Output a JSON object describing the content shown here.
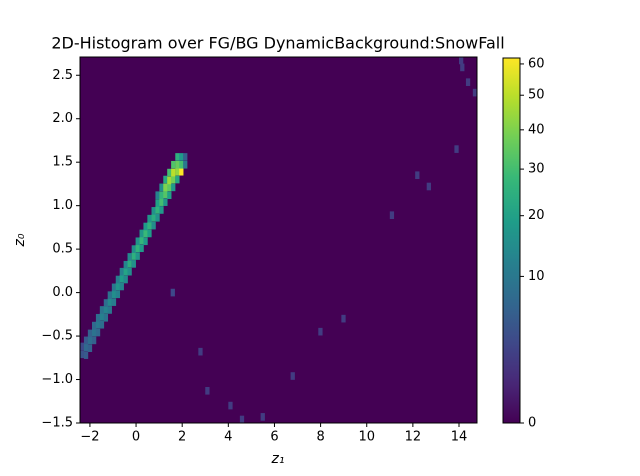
{
  "chart_data": {
    "type": "hist2d",
    "title": "2D-Histogram over FG/BG DynamicBackground:SnowFall",
    "xlabel": "z₁",
    "ylabel": "z₀",
    "cmap": "viridis",
    "color_scale": "sqrt",
    "clim": [
      0,
      62
    ],
    "bins": [
      100,
      50
    ],
    "xlim": [
      -2.43,
      14.78
    ],
    "ylim": [
      -1.5,
      2.71
    ],
    "xticks": [
      {
        "value": -2,
        "label": "−2"
      },
      0,
      2,
      4,
      6,
      8,
      10,
      12,
      14
    ],
    "yticks": [
      {
        "value": -1.5,
        "label": "−1.5"
      },
      {
        "value": -1.0,
        "label": "−1.0"
      },
      {
        "value": -0.5,
        "label": "−0.5"
      },
      {
        "value": 0.0,
        "label": "0.0"
      },
      0.5,
      {
        "value": 1.0,
        "label": "1.0"
      },
      1.5,
      {
        "value": 2.0,
        "label": "2.0"
      },
      2.5
    ],
    "cticks": [
      0,
      10,
      20,
      30,
      40,
      50,
      60
    ],
    "cells": [
      [
        -2.43,
        -0.75,
        4
      ],
      [
        -2.43,
        -0.66,
        3
      ],
      [
        -2.26,
        -0.76,
        5
      ],
      [
        -2.26,
        -0.67,
        7
      ],
      [
        -2.26,
        -0.59,
        5
      ],
      [
        -2.09,
        -0.68,
        6
      ],
      [
        -2.09,
        -0.59,
        8
      ],
      [
        -2.09,
        -0.51,
        6
      ],
      [
        -1.91,
        -0.59,
        6
      ],
      [
        -1.91,
        -0.5,
        9
      ],
      [
        -1.91,
        -0.42,
        7
      ],
      [
        -1.74,
        -0.5,
        7
      ],
      [
        -1.74,
        -0.41,
        10
      ],
      [
        -1.74,
        -0.33,
        8
      ],
      [
        -1.57,
        -0.41,
        8
      ],
      [
        -1.57,
        -0.32,
        12
      ],
      [
        -1.57,
        -0.24,
        9
      ],
      [
        -1.4,
        -0.33,
        9
      ],
      [
        -1.4,
        -0.24,
        13
      ],
      [
        -1.4,
        -0.16,
        8
      ],
      [
        -1.23,
        -0.24,
        10
      ],
      [
        -1.23,
        -0.15,
        14
      ],
      [
        -1.23,
        -0.07,
        9
      ],
      [
        -1.05,
        -0.15,
        11
      ],
      [
        -1.05,
        -0.06,
        15
      ],
      [
        -1.05,
        0.02,
        10
      ],
      [
        -0.88,
        -0.06,
        12
      ],
      [
        -0.88,
        0.03,
        17
      ],
      [
        -0.88,
        0.11,
        11
      ],
      [
        -0.71,
        0.03,
        13
      ],
      [
        -0.71,
        0.12,
        19
      ],
      [
        -0.71,
        0.2,
        12
      ],
      [
        -0.54,
        0.11,
        14
      ],
      [
        -0.54,
        0.2,
        21
      ],
      [
        -0.54,
        0.28,
        13
      ],
      [
        -0.37,
        0.2,
        15
      ],
      [
        -0.37,
        0.29,
        24
      ],
      [
        -0.37,
        0.37,
        14
      ],
      [
        -0.19,
        0.29,
        16
      ],
      [
        -0.19,
        0.38,
        25
      ],
      [
        -0.19,
        0.46,
        15
      ],
      [
        -0.02,
        0.38,
        17
      ],
      [
        -0.02,
        0.47,
        26
      ],
      [
        -0.02,
        0.55,
        16
      ],
      [
        0.15,
        0.47,
        18
      ],
      [
        0.15,
        0.56,
        27
      ],
      [
        0.15,
        0.64,
        17
      ],
      [
        0.32,
        0.55,
        18
      ],
      [
        0.32,
        0.64,
        28
      ],
      [
        0.32,
        0.72,
        18
      ],
      [
        0.49,
        0.64,
        19
      ],
      [
        0.49,
        0.73,
        26
      ],
      [
        0.49,
        0.81,
        17
      ],
      [
        0.67,
        0.73,
        15
      ],
      [
        0.67,
        0.82,
        24
      ],
      [
        0.67,
        0.9,
        16
      ],
      [
        0.84,
        0.82,
        16
      ],
      [
        0.84,
        0.91,
        26
      ],
      [
        0.84,
        0.99,
        20
      ],
      [
        0.84,
        1.08,
        12
      ],
      [
        1.01,
        0.91,
        18
      ],
      [
        1.01,
        1.0,
        30
      ],
      [
        1.01,
        1.08,
        27
      ],
      [
        1.01,
        1.17,
        15
      ],
      [
        1.18,
        1.0,
        17
      ],
      [
        1.18,
        1.09,
        33
      ],
      [
        1.18,
        1.17,
        40
      ],
      [
        1.18,
        1.26,
        22
      ],
      [
        1.35,
        1.08,
        20
      ],
      [
        1.35,
        1.17,
        35
      ],
      [
        1.35,
        1.25,
        45
      ],
      [
        1.35,
        1.34,
        30
      ],
      [
        1.52,
        1.17,
        18
      ],
      [
        1.52,
        1.26,
        38
      ],
      [
        1.52,
        1.34,
        50
      ],
      [
        1.52,
        1.43,
        32
      ],
      [
        1.7,
        1.26,
        22
      ],
      [
        1.7,
        1.35,
        44
      ],
      [
        1.7,
        1.43,
        36
      ],
      [
        1.7,
        1.52,
        25
      ],
      [
        1.87,
        1.35,
        62
      ],
      [
        1.87,
        1.43,
        30
      ],
      [
        1.87,
        1.52,
        18
      ],
      [
        2.04,
        1.43,
        10
      ],
      [
        2.04,
        1.52,
        6
      ],
      [
        1.5,
        -0.04,
        3
      ],
      [
        2.7,
        -0.72,
        2
      ],
      [
        3.0,
        -1.17,
        2
      ],
      [
        4.0,
        -1.34,
        2
      ],
      [
        4.5,
        -1.5,
        2
      ],
      [
        5.4,
        -1.47,
        2
      ],
      [
        6.7,
        -1.0,
        2
      ],
      [
        7.9,
        -0.49,
        2
      ],
      [
        8.9,
        -0.34,
        2
      ],
      [
        11.0,
        0.85,
        2
      ],
      [
        12.1,
        1.31,
        2
      ],
      [
        12.6,
        1.18,
        2
      ],
      [
        13.8,
        1.61,
        2
      ],
      [
        14.0,
        2.63,
        2
      ],
      [
        14.05,
        2.55,
        2
      ],
      [
        14.3,
        2.38,
        2
      ],
      [
        14.6,
        2.26,
        2
      ]
    ]
  }
}
